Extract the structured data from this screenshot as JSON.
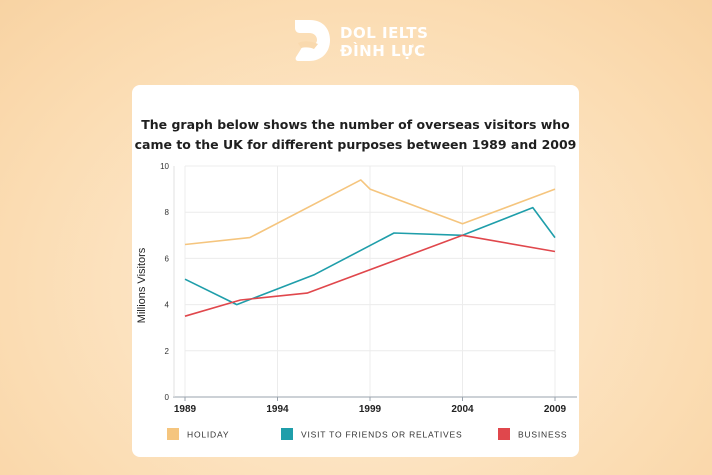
{
  "brand": {
    "line1": "DOL IELTS",
    "line2": "ĐÌNH LỰC"
  },
  "chart_data": {
    "type": "line",
    "title_lines": [
      "The graph below shows the number of overseas visitors who",
      "came to the UK for different purposes between 1989 and 2009"
    ],
    "xlabel": "",
    "ylabel": "Millions Visitors",
    "xlim": [
      1989,
      2009
    ],
    "ylim": [
      0,
      10
    ],
    "x_ticks": [
      1989,
      1994,
      1999,
      2004,
      2009
    ],
    "y_ticks": [
      0,
      2,
      4,
      6,
      8,
      10
    ],
    "grid": true,
    "legend_position": "bottom",
    "series": [
      {
        "name": "HOLIDAY",
        "color": "#f5c57e",
        "points": [
          [
            1989,
            6.6
          ],
          [
            1992.5,
            6.9
          ],
          [
            1998.5,
            9.4
          ],
          [
            1999,
            9.0
          ],
          [
            2004,
            7.5
          ],
          [
            2009,
            9.0
          ]
        ]
      },
      {
        "name": "VISIT TO FRIENDS OR RELATIVES",
        "color": "#1f9eaa",
        "points": [
          [
            1989,
            5.1
          ],
          [
            1991.8,
            4.0
          ],
          [
            1996,
            5.3
          ],
          [
            2000.3,
            7.1
          ],
          [
            2004,
            7.0
          ],
          [
            2007.8,
            8.2
          ],
          [
            2009,
            6.9
          ]
        ]
      },
      {
        "name": "BUSINESS",
        "color": "#e0474c",
        "points": [
          [
            1989,
            3.5
          ],
          [
            1992,
            4.2
          ],
          [
            1995.6,
            4.5
          ],
          [
            2004,
            7.0
          ],
          [
            2009,
            6.3
          ]
        ]
      }
    ]
  }
}
